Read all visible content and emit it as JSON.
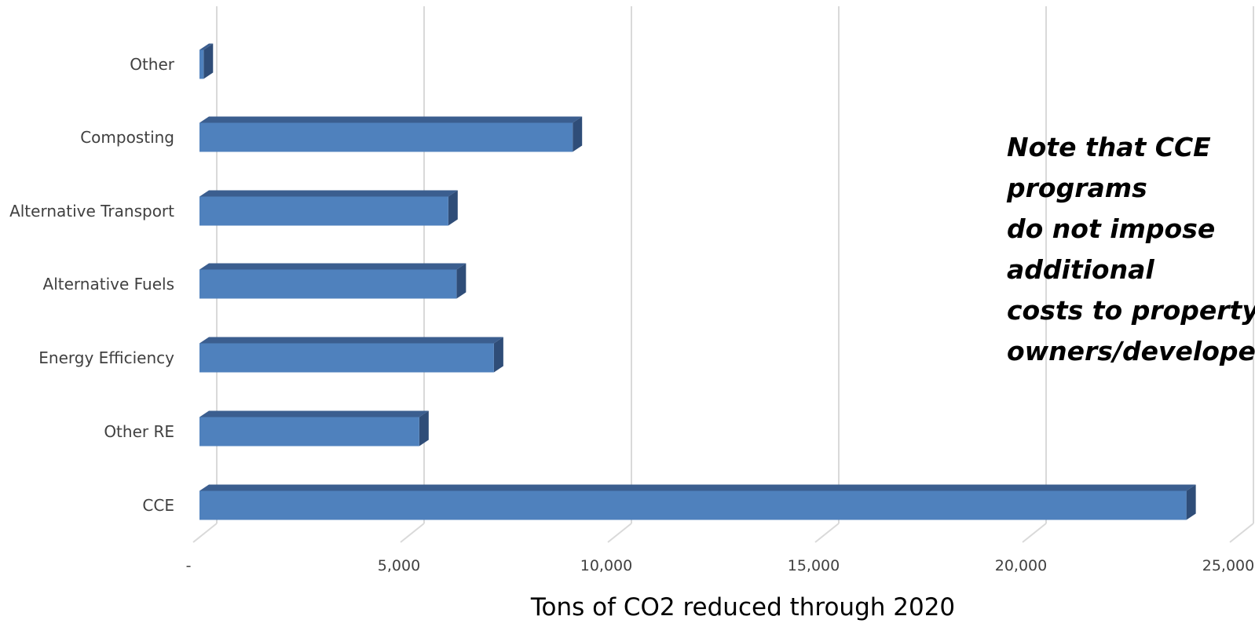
{
  "note": "Note that CCE programs\ndo not impose additional\ncosts to property\nowners/developers",
  "colors": {
    "bar_front": "#4f81bd",
    "bar_top": "#3b5e8f",
    "bar_side": "#2f4d78",
    "grid": "#d9d9d9"
  },
  "chart_data": {
    "type": "bar",
    "orientation": "horizontal",
    "style": "3d",
    "categories": [
      "Other",
      "Composting",
      "Alternative Transport",
      "Alternative Fuels",
      "Energy Efficiency",
      "Other RE",
      "CCE"
    ],
    "values": [
      100,
      9000,
      6000,
      6200,
      7100,
      5300,
      23800
    ],
    "xlabel": "Tons of CO2 reduced through 2020",
    "xlim": [
      0,
      25000
    ],
    "xticks": [
      0,
      5000,
      10000,
      15000,
      20000,
      25000
    ],
    "xtick_labels": [
      "-",
      "5,000",
      "10,000",
      "15,000",
      "20,000",
      "25,000"
    ],
    "grid": true
  }
}
